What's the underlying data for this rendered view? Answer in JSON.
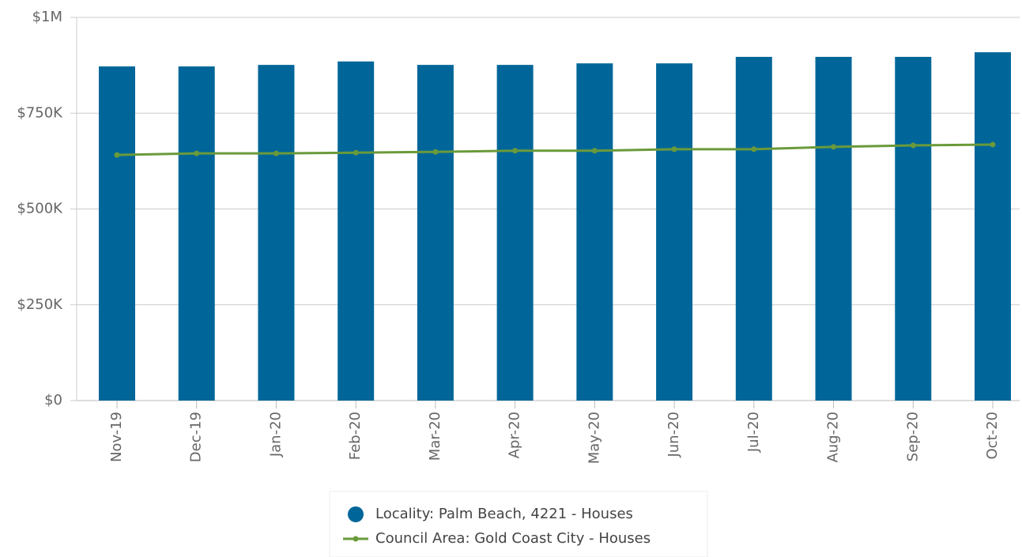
{
  "chart_data": {
    "type": "bar",
    "categories": [
      "Nov-19",
      "Dec-19",
      "Jan-20",
      "Feb-20",
      "Mar-20",
      "Apr-20",
      "May-20",
      "Jun-20",
      "Jul-20",
      "Aug-20",
      "Sep-20",
      "Oct-20"
    ],
    "series": [
      {
        "name": "Locality: Palm Beach, 4221 - Houses",
        "type": "bar",
        "color": "#006699",
        "values": [
          872000,
          872000,
          876000,
          885000,
          876000,
          876000,
          880000,
          880000,
          897000,
          897000,
          897000,
          909000
        ]
      },
      {
        "name": "Council Area: Gold Coast City - Houses",
        "type": "line",
        "color": "#6a9a3a",
        "values": [
          641000,
          645000,
          645000,
          647000,
          649000,
          652000,
          652000,
          656000,
          656000,
          662000,
          666000,
          668000
        ]
      }
    ],
    "ylim": [
      0,
      1000000
    ],
    "yticks": [
      {
        "value": 0,
        "label": "$0"
      },
      {
        "value": 250000,
        "label": "$250K"
      },
      {
        "value": 500000,
        "label": "$500K"
      },
      {
        "value": 750000,
        "label": "$750K"
      },
      {
        "value": 1000000,
        "label": "$1M"
      }
    ],
    "grid": true
  }
}
